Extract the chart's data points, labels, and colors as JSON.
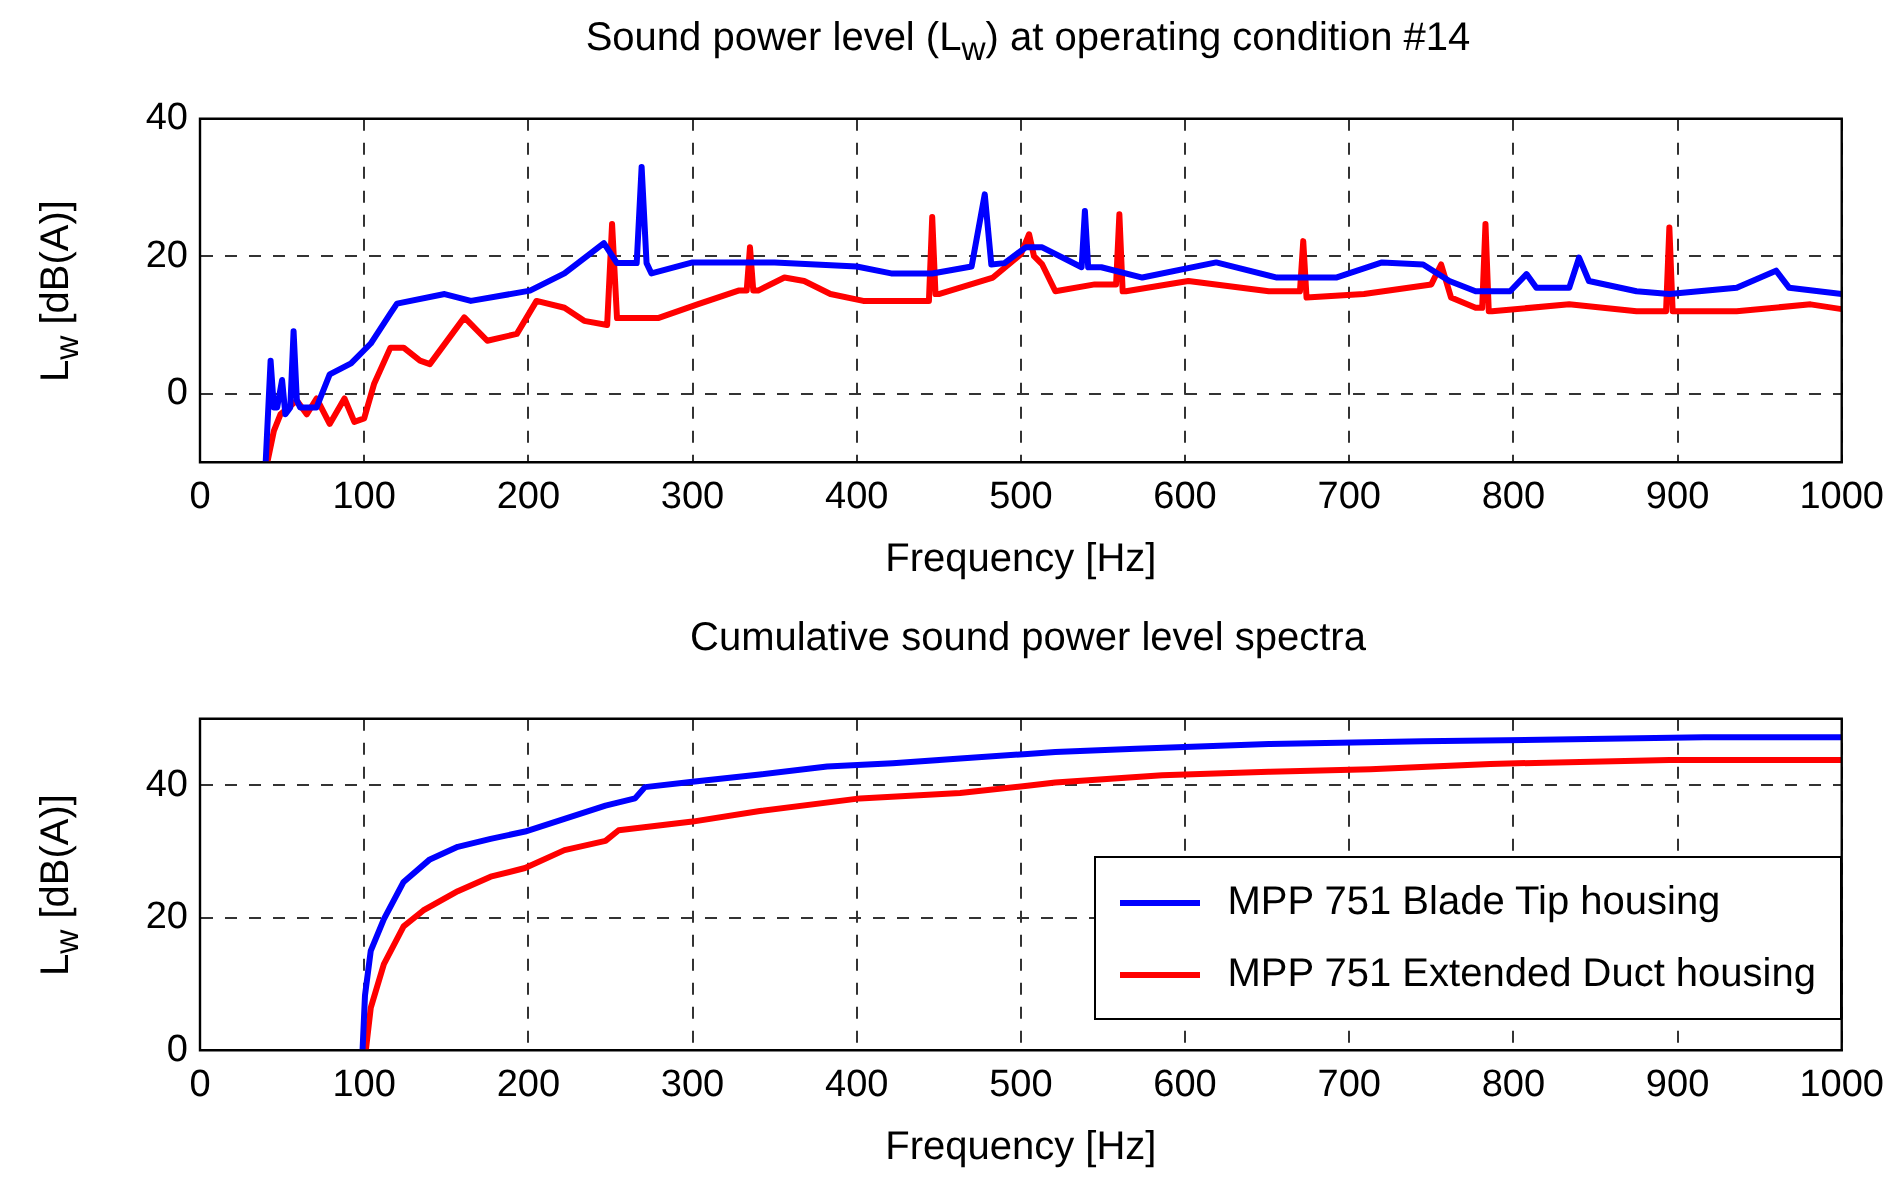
{
  "chart_data": [
    {
      "type": "line",
      "title": "Sound power level (L$_{w}$) at operating condition #14",
      "xlabel": "Frequency [Hz]",
      "ylabel": "L$_{w}$ [dB(A)]",
      "xlim": [
        0,
        1000
      ],
      "xticks": [
        0,
        100,
        200,
        300,
        400,
        500,
        600,
        700,
        800,
        900,
        1000
      ],
      "ylim": [
        -10,
        40
      ],
      "yticks": [
        0,
        20,
        40
      ],
      "grid": true,
      "legend": false,
      "line_style": "solid",
      "marker": "none",
      "series": [
        {
          "color": "#0000ff",
          "x": [
            40,
            43,
            45,
            47,
            50,
            52,
            55,
            57,
            59,
            61,
            71,
            79,
            92,
            104,
            116,
            120,
            149,
            165,
            201,
            222,
            246,
            254,
            266,
            269,
            272,
            275,
            300,
            350,
            400,
            421,
            446,
            470,
            478,
            482,
            490,
            503,
            513,
            537,
            539,
            541,
            549,
            574,
            619,
            656,
            692,
            720,
            745,
            761,
            777,
            798,
            808,
            814,
            834,
            840,
            846,
            875,
            895,
            936,
            960,
            968,
            1000
          ],
          "values": [
            -10,
            4.8,
            -2,
            -2,
            2,
            -3,
            -2,
            9.1,
            -1,
            -2,
            -2,
            2.8,
            4.4,
            7.3,
            11.7,
            13.1,
            14.5,
            13.5,
            15,
            17.5,
            21.9,
            19,
            19,
            33,
            19,
            17.5,
            19.1,
            19.1,
            18.5,
            17.5,
            17.5,
            18.5,
            29,
            18.8,
            19,
            21.3,
            21.3,
            18.4,
            26.6,
            18.4,
            18.4,
            16.9,
            19.1,
            16.9,
            16.9,
            19.1,
            18.8,
            16.4,
            14.9,
            14.9,
            17.4,
            15.4,
            15.4,
            19.8,
            16.4,
            14.9,
            14.5,
            15.4,
            17.9,
            15.4,
            14.5
          ]
        },
        {
          "color": "#ff0000",
          "x": [
            41,
            45,
            49,
            59,
            65,
            71,
            79,
            88,
            94,
            100,
            106,
            116,
            124,
            134,
            140,
            161,
            175,
            193,
            205,
            222,
            234,
            248,
            251,
            254,
            279,
            303,
            328,
            333,
            335,
            337,
            340,
            356,
            368,
            384,
            404,
            444,
            446,
            448,
            450,
            483,
            500,
            505,
            508,
            513,
            521,
            545,
            558,
            560,
            562,
            564,
            602,
            651,
            670,
            672,
            674,
            709,
            750,
            756,
            762,
            777,
            781,
            783,
            785,
            787,
            834,
            875,
            893,
            895,
            897,
            899,
            936,
            981,
            1000
          ],
          "values": [
            -10,
            -5.4,
            -3,
            -1,
            -3,
            -0.7,
            -4.4,
            -0.7,
            -4.1,
            -3.6,
            1.4,
            6.7,
            6.7,
            4.8,
            4.3,
            11.1,
            7.7,
            8.7,
            13.5,
            12.5,
            10.6,
            10,
            24.7,
            11,
            11,
            13,
            15,
            15,
            21.3,
            15,
            15,
            16.9,
            16.4,
            14.5,
            13.5,
            13.5,
            25.7,
            14.5,
            14.5,
            16.9,
            20.3,
            23.2,
            20,
            18.8,
            14.9,
            15.9,
            15.9,
            26.1,
            14.9,
            14.9,
            16.4,
            14.9,
            14.9,
            22.2,
            14,
            14.5,
            15.9,
            18.8,
            14,
            12.5,
            12.5,
            24.7,
            12,
            12,
            13,
            12,
            12,
            24.2,
            12,
            12,
            12,
            13,
            12.3
          ]
        }
      ]
    },
    {
      "type": "line",
      "title": "Cumulative sound power level spectra",
      "xlabel": "Frequency [Hz]",
      "ylabel": "L$_{w}$ [dB(A)]",
      "xlim": [
        0,
        1000
      ],
      "xticks": [
        0,
        100,
        200,
        300,
        400,
        500,
        600,
        700,
        800,
        900,
        1000
      ],
      "ylim": [
        0,
        50
      ],
      "yticks": [
        0,
        20,
        40
      ],
      "grid": true,
      "legend": "bottom right",
      "line_style": "solid",
      "marker": "none",
      "series": [
        {
          "name": "MPP 751 Blade Tip housing",
          "color": "#0000ff",
          "x": [
            99,
            100.5,
            104,
            112,
            124,
            140,
            157,
            177,
            198,
            222,
            247,
            265,
            271,
            300,
            341,
            382,
            422,
            463,
            504,
            521,
            570,
            651,
            745,
            916,
            1000
          ],
          "values": [
            0,
            8.3,
            15,
            19.8,
            25.4,
            28.8,
            30.7,
            31.9,
            33,
            34.9,
            36.9,
            38,
            39.7,
            40.5,
            41.6,
            42.8,
            43.3,
            44,
            44.7,
            45,
            45.5,
            46.2,
            46.6,
            47.2,
            47.2
          ]
        },
        {
          "name": "MPP 751 Extended Duct housing",
          "color": "#ff0000",
          "x": [
            101,
            104,
            112,
            124,
            136,
            157,
            177,
            198,
            222,
            247,
            255,
            300,
            341,
            402,
            463,
            504,
            521,
            586,
            651,
            713,
            786,
            895,
            1000
          ],
          "values": [
            0,
            6.4,
            13,
            18.7,
            21.1,
            24,
            26.2,
            27.5,
            30.2,
            31.6,
            33.2,
            34.5,
            36.1,
            38,
            38.8,
            39.9,
            40.4,
            41.5,
            42,
            42.4,
            43.2,
            43.8,
            43.8
          ]
        }
      ]
    }
  ]
}
